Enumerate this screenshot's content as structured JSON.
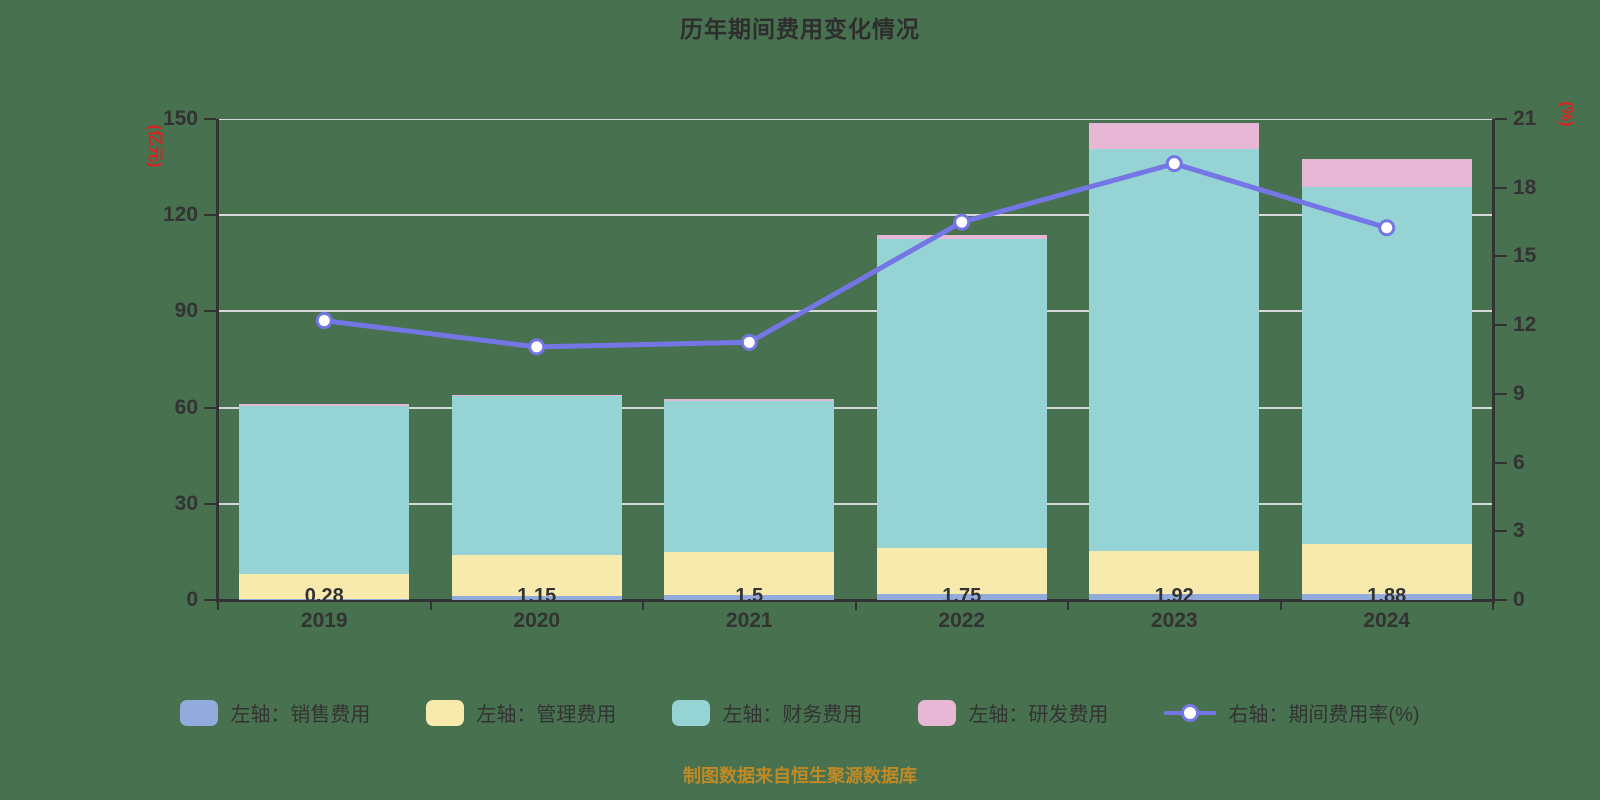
{
  "title": "历年期间费用变化情况",
  "source_note": "制图数据来自恒生聚源数据库",
  "colors": {
    "background": "#47714F",
    "title": "#2E2E2E",
    "axis": "#333333",
    "grid": "#D8D8D8",
    "tick_label": "#333333",
    "axis_name": "#E02020",
    "source": "#BF8A26",
    "sales": "#92ABDC",
    "management": "#F8E9AC",
    "financial": "#96D3D4",
    "rnd": "#E7B8D6",
    "rate_line": "#7476E5",
    "marker_fill": "#FFFFFF",
    "legend_text": "#333333"
  },
  "left_axis": {
    "name": "(亿元)",
    "min": 0,
    "max": 150,
    "ticks": [
      0,
      30,
      60,
      90,
      120,
      150
    ]
  },
  "right_axis": {
    "name": "(%)",
    "min": 0,
    "max": 21,
    "ticks": [
      0,
      3,
      6,
      9,
      12,
      15,
      18,
      21
    ]
  },
  "chart_data": {
    "type": "bar",
    "subtype": "stacked bars (left axis) + line (right axis)",
    "title": "历年期间费用变化情况",
    "categories": [
      "2019",
      "2020",
      "2021",
      "2022",
      "2023",
      "2024"
    ],
    "ylim_left": [
      0,
      150
    ],
    "ylim_right": [
      0,
      21
    ],
    "grid": true,
    "legend_position": "bottom",
    "series": [
      {
        "name": "左轴：销售费用",
        "type": "bar",
        "stack": true,
        "axis": "left",
        "color_key": "sales",
        "values": [
          0.28,
          1.15,
          1.5,
          1.75,
          1.92,
          1.88
        ]
      },
      {
        "name": "左轴：管理费用",
        "type": "bar",
        "stack": true,
        "axis": "left",
        "color_key": "management",
        "values": [
          7.9,
          12.9,
          13.5,
          14.5,
          13.4,
          15.7
        ]
      },
      {
        "name": "左轴：财务费用",
        "type": "bar",
        "stack": true,
        "axis": "left",
        "color_key": "financial",
        "values": [
          52.4,
          49.7,
          47.2,
          96.2,
          125.4,
          111.1
        ]
      },
      {
        "name": "左轴：研发费用",
        "type": "bar",
        "stack": true,
        "axis": "left",
        "color_key": "rnd",
        "values": [
          0.5,
          0.3,
          0.6,
          1.35,
          8.1,
          9.0
        ]
      },
      {
        "name": "右轴：期间费用率(%)",
        "type": "line",
        "axis": "right",
        "color_key": "rate_line",
        "values": [
          12.2,
          11.05,
          11.25,
          16.5,
          19.05,
          16.25
        ]
      }
    ],
    "bar_value_labels": [
      "0.28",
      "1.15",
      "1.5",
      "1.75",
      "1.92",
      "1.88"
    ]
  },
  "legend": {
    "items": [
      {
        "label": "左轴：销售费用",
        "kind": "swatch",
        "color_key": "sales"
      },
      {
        "label": "左轴：管理费用",
        "kind": "swatch",
        "color_key": "management"
      },
      {
        "label": "左轴：财务费用",
        "kind": "swatch",
        "color_key": "financial"
      },
      {
        "label": "左轴：研发费用",
        "kind": "swatch",
        "color_key": "rnd"
      },
      {
        "label": "右轴：期间费用率(%)",
        "kind": "line-marker",
        "color_key": "rate_line"
      }
    ]
  }
}
